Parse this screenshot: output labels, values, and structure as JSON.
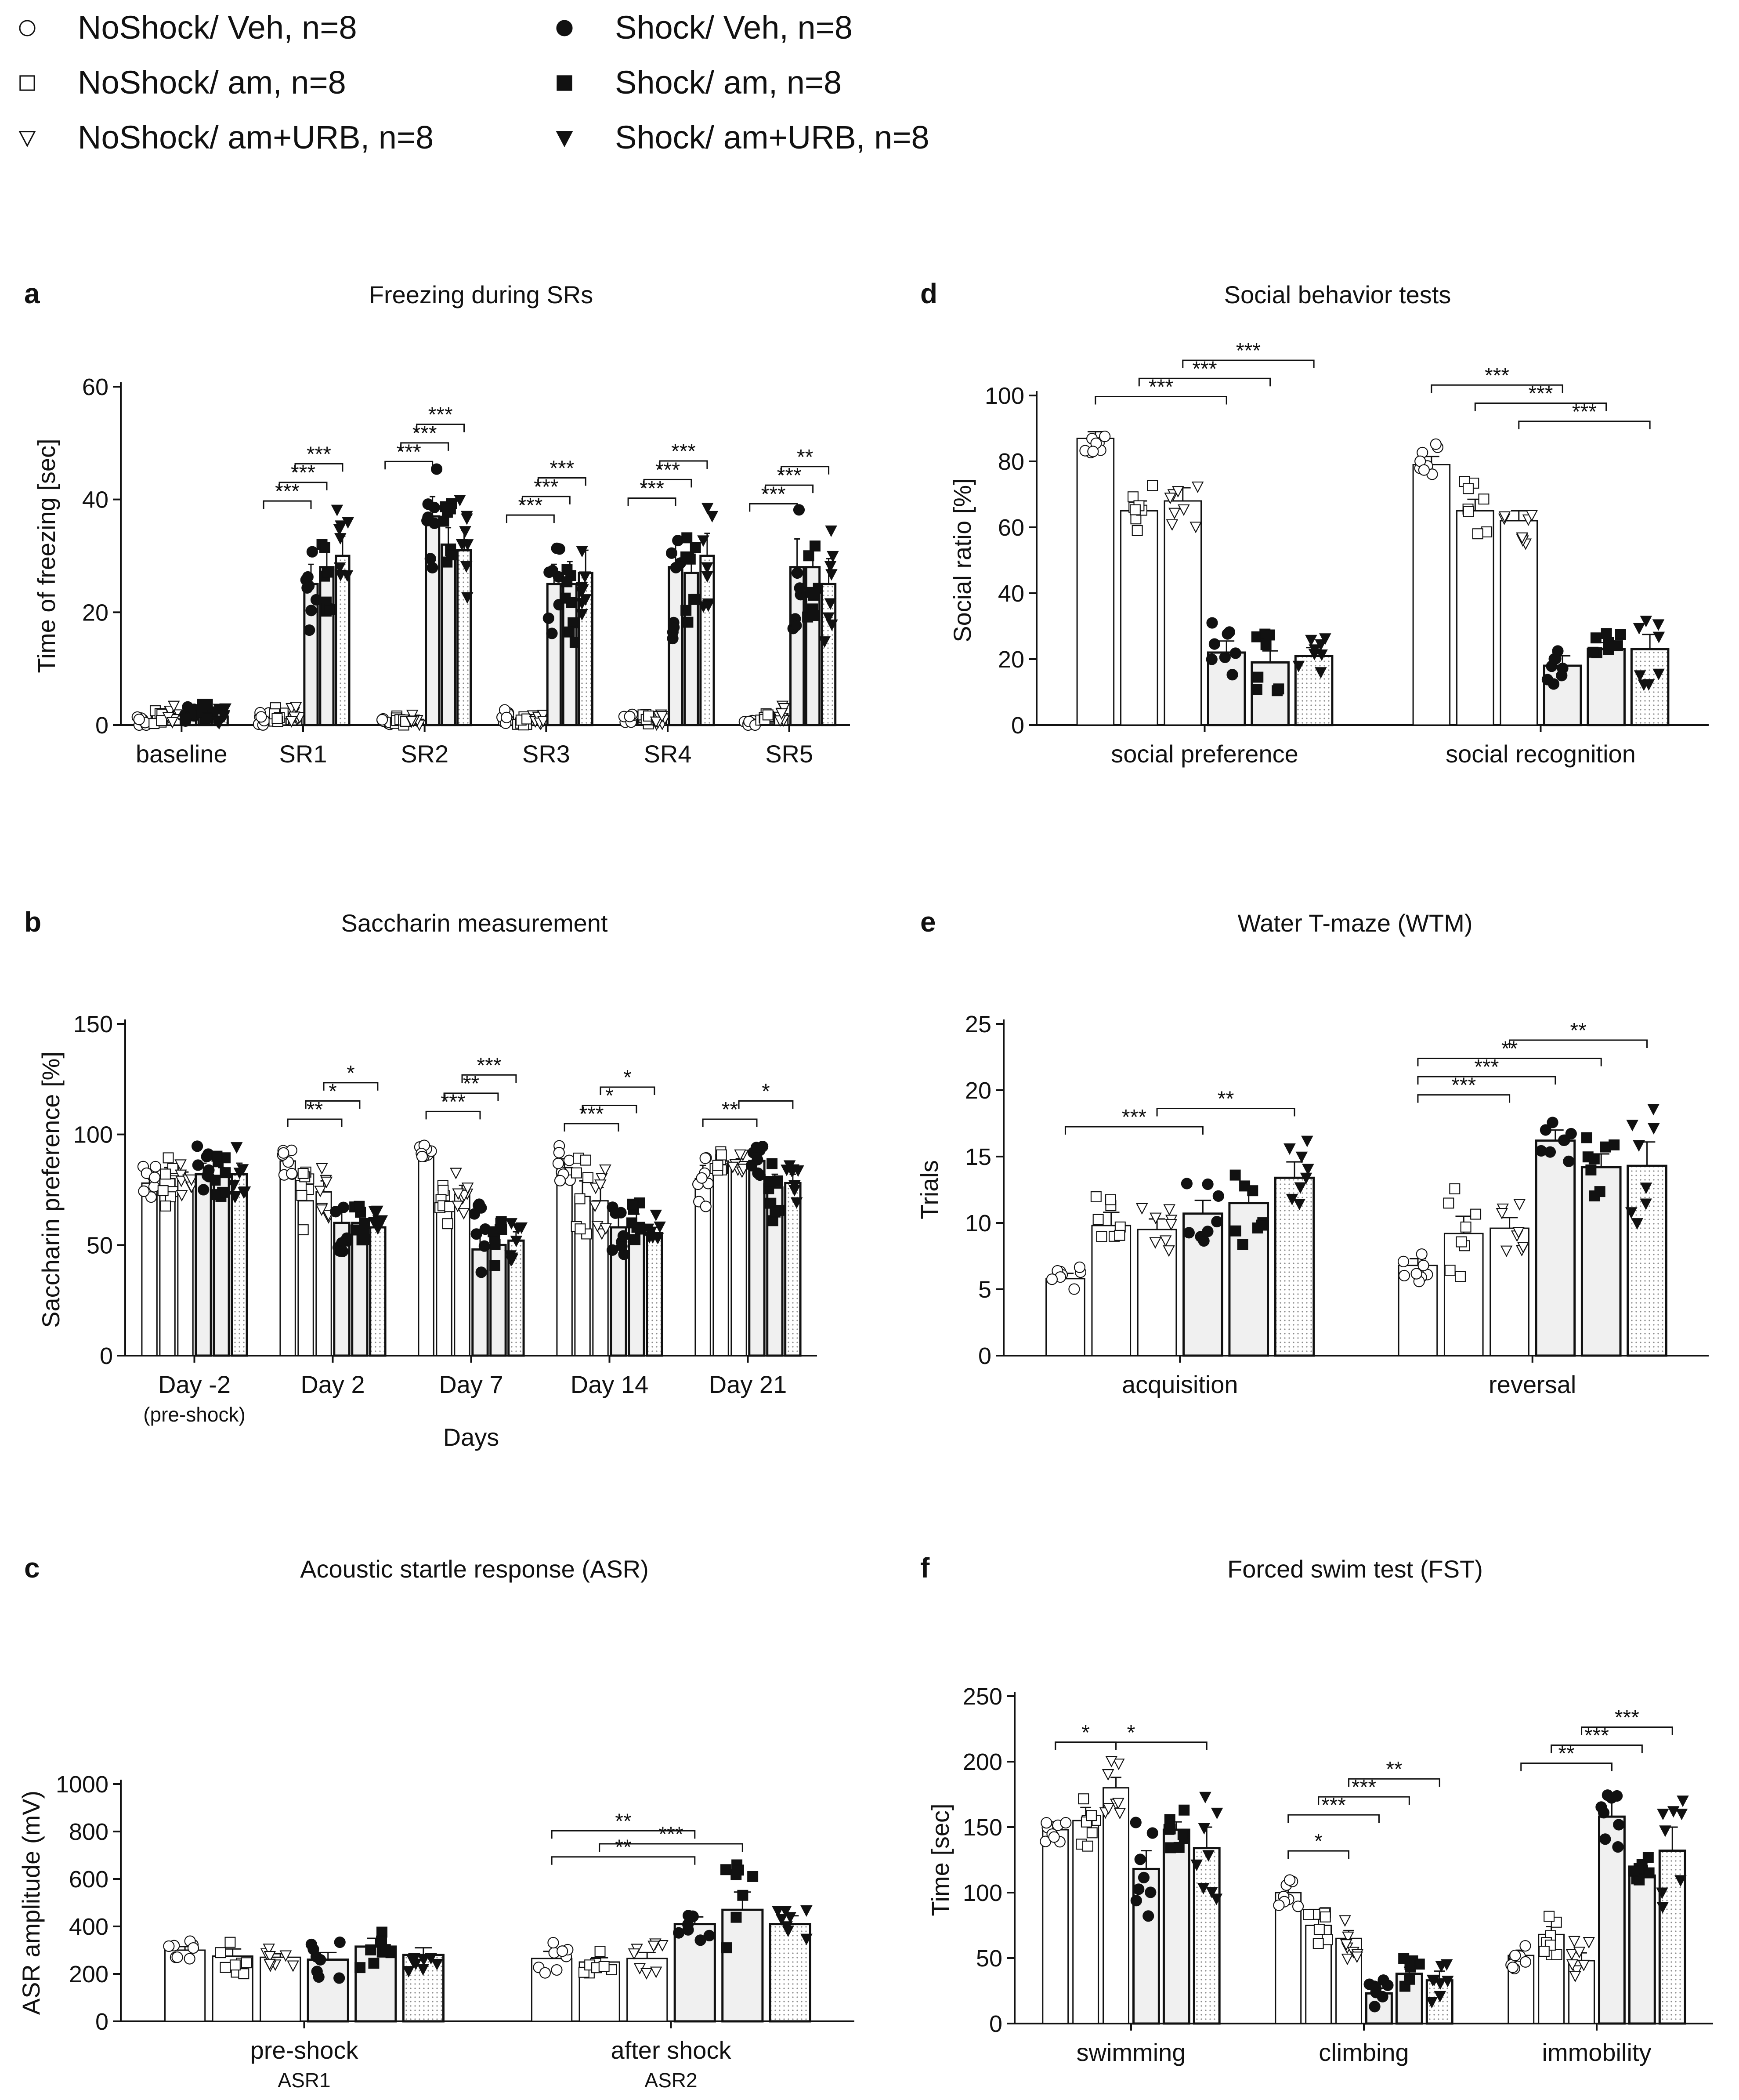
{
  "figure": {
    "legend": [
      {
        "label": "NoShock/ Veh,  n=8",
        "marker": "circle",
        "filled": false
      },
      {
        "label": "NoShock/ am,  n=8",
        "marker": "square",
        "filled": false
      },
      {
        "label": "NoShock/ am+URB,  n=8",
        "marker": "triangle",
        "filled": false
      },
      {
        "label": "Shock/ Veh,  n=8",
        "marker": "circle",
        "filled": true
      },
      {
        "label": "Shock/ am,  n=8",
        "marker": "square",
        "filled": true
      },
      {
        "label": "Shock/ am+URB,  n=8",
        "marker": "triangle",
        "filled": true
      }
    ],
    "colors": {
      "ink": "#111111",
      "shock_fill": "#f0f0f0",
      "dot_fill": "#c8c8c8",
      "paper": "#ffffff"
    }
  },
  "chart_data": [
    {
      "panel": "a",
      "type": "bar",
      "title": "Freezing during SRs",
      "xlabel": "",
      "ylabel": "Time of freezing [sec]",
      "ylim": [
        0,
        60
      ],
      "yticks": [
        0,
        20,
        40,
        60
      ],
      "categories": [
        "baseline",
        "SR1",
        "SR2",
        "SR3",
        "SR4",
        "SR5"
      ],
      "category_sublabels": [],
      "series": [
        {
          "name": "NoShock/ Veh",
          "values": [
            1,
            1,
            1,
            1.5,
            1,
            0.5
          ],
          "errors": [
            0.5,
            0.5,
            0.4,
            0.5,
            0.4,
            0.3
          ]
        },
        {
          "name": "NoShock/ am",
          "values": [
            1.5,
            2,
            1,
            1,
            1,
            1
          ],
          "errors": [
            0.5,
            0.6,
            0.4,
            0.4,
            0.4,
            0.4
          ]
        },
        {
          "name": "NoShock/ am+URB",
          "values": [
            2,
            2,
            1,
            1,
            1,
            2
          ],
          "errors": [
            0.6,
            0.6,
            0.4,
            0.4,
            0.4,
            0.6
          ]
        },
        {
          "name": "Shock/ Veh",
          "values": [
            2,
            25,
            37,
            25,
            28,
            28
          ],
          "errors": [
            0.6,
            3.5,
            3.5,
            3.5,
            5,
            5
          ]
        },
        {
          "name": "Shock/ am",
          "values": [
            2.5,
            28,
            32,
            25,
            27,
            28
          ],
          "errors": [
            0.8,
            3,
            3,
            4,
            3.5,
            3.5
          ]
        },
        {
          "name": "Shock/ am+URB",
          "values": [
            1.5,
            30,
            31,
            27,
            30,
            25
          ],
          "errors": [
            0.6,
            3.5,
            3.5,
            4,
            4,
            4.5
          ]
        }
      ],
      "brackets": [
        {
          "cat": 1,
          "from": 0,
          "to": 3,
          "level": 0,
          "label": "***"
        },
        {
          "cat": 1,
          "from": 1,
          "to": 4,
          "level": 1,
          "label": "***"
        },
        {
          "cat": 1,
          "from": 2,
          "to": 5,
          "level": 2,
          "label": "***"
        },
        {
          "cat": 2,
          "from": 0,
          "to": 3,
          "level": 0,
          "label": "***"
        },
        {
          "cat": 2,
          "from": 1,
          "to": 4,
          "level": 1,
          "label": "***"
        },
        {
          "cat": 2,
          "from": 2,
          "to": 5,
          "level": 2,
          "label": "***"
        },
        {
          "cat": 3,
          "from": 0,
          "to": 3,
          "level": 0,
          "label": "***"
        },
        {
          "cat": 3,
          "from": 1,
          "to": 4,
          "level": 1,
          "label": "***"
        },
        {
          "cat": 3,
          "from": 2,
          "to": 5,
          "level": 2,
          "label": "***"
        },
        {
          "cat": 4,
          "from": 0,
          "to": 3,
          "level": 0,
          "label": "***"
        },
        {
          "cat": 4,
          "from": 1,
          "to": 4,
          "level": 1,
          "label": "***"
        },
        {
          "cat": 4,
          "from": 2,
          "to": 5,
          "level": 2,
          "label": "***"
        },
        {
          "cat": 5,
          "from": 0,
          "to": 3,
          "level": 0,
          "label": "***"
        },
        {
          "cat": 5,
          "from": 1,
          "to": 4,
          "level": 1,
          "label": "***"
        },
        {
          "cat": 5,
          "from": 2,
          "to": 5,
          "level": 2,
          "label": "**"
        }
      ]
    },
    {
      "panel": "b",
      "type": "bar",
      "title": "Saccharin measurement",
      "xlabel": "Days",
      "ylabel": "Saccharin preference [%]",
      "ylim": [
        0,
        150
      ],
      "yticks": [
        0,
        50,
        100,
        150
      ],
      "categories": [
        "Day -2",
        "Day 2",
        "Day 7",
        "Day 14",
        "Day 21"
      ],
      "category_sublabels": [
        "(pre-shock)",
        "",
        "",
        "",
        ""
      ],
      "series": [
        {
          "name": "NoShock/ Veh",
          "values": [
            78,
            88,
            93,
            85,
            80
          ],
          "errors": [
            3,
            3,
            1.5,
            4,
            6
          ]
        },
        {
          "name": "NoShock/ am",
          "values": [
            80,
            70,
            68,
            72,
            88
          ],
          "errors": [
            5,
            7,
            4,
            7,
            3
          ]
        },
        {
          "name": "NoShock/ am+URB",
          "values": [
            80,
            74,
            73,
            70,
            87
          ],
          "errors": [
            3,
            5,
            4,
            6,
            2
          ]
        },
        {
          "name": "Shock/ Veh",
          "values": [
            82,
            60,
            48,
            58,
            88
          ],
          "errors": [
            5,
            5,
            8,
            5,
            3
          ]
        },
        {
          "name": "Shock/ am",
          "values": [
            81,
            60,
            50,
            60,
            76
          ],
          "errors": [
            4,
            3,
            5,
            4,
            6
          ]
        },
        {
          "name": "Shock/ am+URB",
          "values": [
            82,
            58,
            52,
            54,
            78
          ],
          "errors": [
            5,
            3,
            4,
            4,
            4
          ]
        }
      ],
      "brackets": [
        {
          "cat": 1,
          "from": 0,
          "to": 3,
          "level": 0,
          "label": "**"
        },
        {
          "cat": 1,
          "from": 1,
          "to": 4,
          "level": 1,
          "label": "*"
        },
        {
          "cat": 1,
          "from": 2,
          "to": 5,
          "level": 2,
          "label": "*"
        },
        {
          "cat": 2,
          "from": 0,
          "to": 3,
          "level": 0,
          "label": "***"
        },
        {
          "cat": 2,
          "from": 1,
          "to": 4,
          "level": 1,
          "label": "**"
        },
        {
          "cat": 2,
          "from": 2,
          "to": 5,
          "level": 2,
          "label": "***"
        },
        {
          "cat": 3,
          "from": 0,
          "to": 3,
          "level": 0,
          "label": "***"
        },
        {
          "cat": 3,
          "from": 1,
          "to": 4,
          "level": 1,
          "label": "*"
        },
        {
          "cat": 3,
          "from": 2,
          "to": 5,
          "level": 2,
          "label": "*"
        },
        {
          "cat": 4,
          "from": 0,
          "to": 3,
          "level": 0,
          "label": "**"
        },
        {
          "cat": 4,
          "from": 2,
          "to": 5,
          "level": 1,
          "label": "*"
        }
      ]
    },
    {
      "panel": "c",
      "type": "bar",
      "title": "Acoustic startle response (ASR)",
      "xlabel": "",
      "ylabel": "ASR amplitude (mV)",
      "ylim": [
        0,
        1000
      ],
      "yticks": [
        0,
        200,
        400,
        600,
        800,
        1000
      ],
      "categories": [
        "pre-shock",
        "after shock"
      ],
      "category_sublabels": [
        "ASR1",
        "ASR2"
      ],
      "series": [
        {
          "name": "NoShock/ Veh",
          "values": [
            300,
            265
          ],
          "errors": [
            15,
            30
          ]
        },
        {
          "name": "NoShock/ am",
          "values": [
            275,
            250
          ],
          "errors": [
            30,
            18
          ]
        },
        {
          "name": "NoShock/ am+URB",
          "values": [
            270,
            265
          ],
          "errors": [
            15,
            25
          ]
        },
        {
          "name": "Shock/ Veh",
          "values": [
            260,
            410
          ],
          "errors": [
            30,
            30
          ]
        },
        {
          "name": "Shock/ am",
          "values": [
            315,
            470
          ],
          "errors": [
            35,
            75
          ]
        },
        {
          "name": "Shock/ am+URB",
          "values": [
            280,
            410
          ],
          "errors": [
            30,
            35
          ]
        }
      ],
      "brackets": [
        {
          "cat": 1,
          "from": 0,
          "to": 3,
          "level": 0,
          "label": "**"
        },
        {
          "cat": 1,
          "from": 1,
          "to": 4,
          "level": 1,
          "label": "***"
        },
        {
          "cat": 1,
          "from": 0,
          "to": 3,
          "level": 2,
          "label": "**"
        }
      ]
    },
    {
      "panel": "d",
      "type": "bar",
      "title": "Social behavior tests",
      "xlabel": "",
      "ylabel": "Social ratio [%]",
      "ylim": [
        0,
        100
      ],
      "yticks": [
        0,
        20,
        40,
        60,
        80,
        100
      ],
      "categories": [
        "social preference",
        "social recognition"
      ],
      "category_sublabels": [],
      "series": [
        {
          "name": "NoShock/ Veh",
          "values": [
            87,
            79
          ],
          "errors": [
            2,
            2.5
          ]
        },
        {
          "name": "NoShock/ am",
          "values": [
            65,
            65
          ],
          "errors": [
            3,
            3.5
          ]
        },
        {
          "name": "NoShock/ am+URB",
          "values": [
            68,
            62
          ],
          "errors": [
            4,
            3
          ]
        },
        {
          "name": "Shock/ Veh",
          "values": [
            22,
            18
          ],
          "errors": [
            3.5,
            3
          ]
        },
        {
          "name": "Shock/ am",
          "values": [
            19,
            23
          ],
          "errors": [
            3.5,
            2
          ]
        },
        {
          "name": "Shock/ am+URB",
          "values": [
            21,
            23
          ],
          "errors": [
            2.5,
            4.5
          ]
        }
      ],
      "brackets": [
        {
          "cat": 0,
          "from": 0,
          "to": 3,
          "level": 0,
          "label": "***"
        },
        {
          "cat": 0,
          "from": 1,
          "to": 4,
          "level": 1,
          "label": "***"
        },
        {
          "cat": 0,
          "from": 2,
          "to": 5,
          "level": 2,
          "label": "***"
        },
        {
          "cat": 1,
          "from": 2,
          "to": 5,
          "level": 0,
          "label": "***"
        },
        {
          "cat": 1,
          "from": 1,
          "to": 4,
          "level": 1,
          "label": "***"
        },
        {
          "cat": 1,
          "from": 0,
          "to": 3,
          "level": 2,
          "label": "***"
        }
      ]
    },
    {
      "panel": "e",
      "type": "bar",
      "title": "Water T-maze (WTM)",
      "xlabel": "",
      "ylabel": "Trials",
      "ylim": [
        0,
        25
      ],
      "yticks": [
        0,
        5,
        10,
        15,
        20,
        25
      ],
      "categories": [
        "acquisition",
        "reversal"
      ],
      "category_sublabels": [],
      "series": [
        {
          "name": "NoShock/ Veh",
          "values": [
            5.8,
            6.8
          ],
          "errors": [
            0.4,
            0.5
          ]
        },
        {
          "name": "NoShock/ am",
          "values": [
            9.8,
            9.2
          ],
          "errors": [
            1,
            1.3
          ]
        },
        {
          "name": "NoShock/ am+URB",
          "values": [
            9.5,
            9.6
          ],
          "errors": [
            0.8,
            0.8
          ]
        },
        {
          "name": "Shock/ Veh",
          "values": [
            10.7,
            16.2
          ],
          "errors": [
            1,
            0.8
          ]
        },
        {
          "name": "Shock/ am",
          "values": [
            11.5,
            14.2
          ],
          "errors": [
            1.2,
            1
          ]
        },
        {
          "name": "Shock/ am+URB",
          "values": [
            13.4,
            14.3
          ],
          "errors": [
            1.2,
            1.8
          ]
        }
      ],
      "brackets": [
        {
          "cat": 0,
          "from": 0,
          "to": 3,
          "level": 0,
          "label": "***"
        },
        {
          "cat": 0,
          "from": 2,
          "to": 5,
          "level": 1,
          "label": "**"
        },
        {
          "cat": 1,
          "from": 0,
          "to": 2,
          "level": 0,
          "label": "***"
        },
        {
          "cat": 1,
          "from": 0,
          "to": 3,
          "level": 1,
          "label": "***"
        },
        {
          "cat": 1,
          "from": 0,
          "to": 4,
          "level": 2,
          "label": "**"
        },
        {
          "cat": 1,
          "from": 2,
          "to": 5,
          "level": 3,
          "label": "**"
        }
      ]
    },
    {
      "panel": "f",
      "type": "bar",
      "title": "Forced swim test (FST)",
      "xlabel": "",
      "ylabel": "Time [sec]",
      "ylim": [
        0,
        250
      ],
      "yticks": [
        0,
        50,
        100,
        150,
        200,
        250
      ],
      "categories": [
        "swimming",
        "climbing",
        "immobility"
      ],
      "category_sublabels": [],
      "series": [
        {
          "name": "NoShock/ Veh",
          "values": [
            148,
            100,
            52
          ],
          "errors": [
            6,
            5,
            4
          ]
        },
        {
          "name": "NoShock/ am",
          "values": [
            155,
            75,
            68
          ],
          "errors": [
            10,
            6,
            6
          ]
        },
        {
          "name": "NoShock/ am+URB",
          "values": [
            180,
            65,
            48
          ],
          "errors": [
            8,
            6,
            6
          ]
        },
        {
          "name": "Shock/ Veh",
          "values": [
            118,
            23,
            158
          ],
          "errors": [
            14,
            4,
            14
          ]
        },
        {
          "name": "Shock/ am",
          "values": [
            148,
            38,
            113
          ],
          "errors": [
            6,
            5,
            6
          ]
        },
        {
          "name": "Shock/ am+URB",
          "values": [
            134,
            33,
            132
          ],
          "errors": [
            16,
            7,
            18
          ]
        }
      ],
      "brackets": [
        {
          "cat": 0,
          "from": 0,
          "to": 5,
          "level": 0,
          "label": "*"
        },
        {
          "cat": 0,
          "from": 0,
          "to": 2,
          "level": 0,
          "label": "*"
        },
        {
          "cat": 1,
          "from": 0,
          "to": 2,
          "level": 0,
          "label": "*"
        },
        {
          "cat": 1,
          "from": 0,
          "to": 3,
          "level": 2,
          "label": "***"
        },
        {
          "cat": 1,
          "from": 1,
          "to": 4,
          "level": 3,
          "label": "***"
        },
        {
          "cat": 1,
          "from": 2,
          "to": 5,
          "level": 4,
          "label": "**"
        },
        {
          "cat": 2,
          "from": 0,
          "to": 3,
          "level": 0,
          "label": "**"
        },
        {
          "cat": 2,
          "from": 1,
          "to": 4,
          "level": 1,
          "label": "***"
        },
        {
          "cat": 2,
          "from": 2,
          "to": 5,
          "level": 2,
          "label": "***"
        }
      ]
    }
  ]
}
